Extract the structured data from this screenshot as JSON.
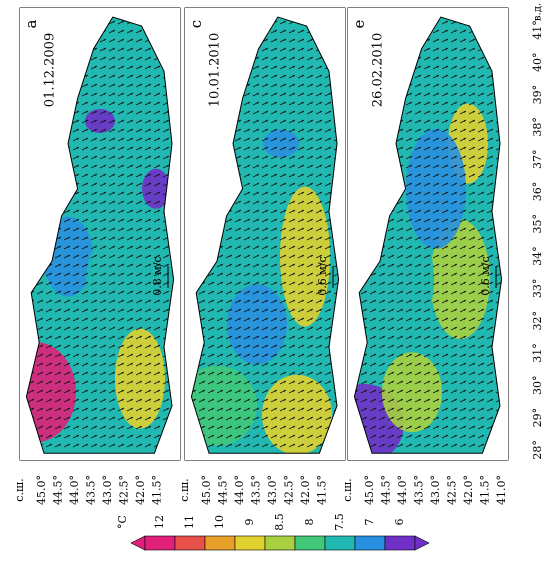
{
  "panels": [
    {
      "label": "а",
      "date": "01.12.2009",
      "scale_label": "0.8 м/с",
      "latitude_unit": "с.ш.",
      "latitude_labels": [
        "45.0°",
        "44.5°",
        "44.0°",
        "43.5°",
        "43.0°",
        "42.5°",
        "42.0°",
        "41.5°"
      ]
    },
    {
      "label": "с",
      "date": "10.01.2010",
      "scale_label": "0.6 м/с",
      "latitude_unit": "с.ш.",
      "latitude_labels": [
        "45.0°",
        "44.5°",
        "44.0°",
        "43.5°",
        "43.0°",
        "42.5°",
        "42.0°",
        "41.5°"
      ]
    },
    {
      "label": "е",
      "date": "26.02.2010",
      "scale_label": "0.6 м/с",
      "latitude_unit": "с.ш.",
      "latitude_labels": [
        "45.0°",
        "44.5°",
        "44.0°",
        "43.5°",
        "43.0°",
        "42.5°",
        "42.0°",
        "41.5°",
        "41.0°"
      ]
    }
  ],
  "longitude_unit": "в.д.",
  "longitude_labels": [
    "41°",
    "40°",
    "39°",
    "38°",
    "37°",
    "36°",
    "35°",
    "34°",
    "33°",
    "32°",
    "31°",
    "30°",
    "29°",
    "28°"
  ],
  "colorbar": {
    "unit": "°C",
    "labels": [
      "12",
      "11",
      "10",
      "9",
      "8.5",
      "8",
      "7.5",
      "7",
      "6"
    ],
    "colors": [
      "#e0207a",
      "#e8504a",
      "#e8a02a",
      "#e0d030",
      "#a8d040",
      "#40c878",
      "#20b8b0",
      "#2890e0",
      "#7030c8"
    ]
  }
}
